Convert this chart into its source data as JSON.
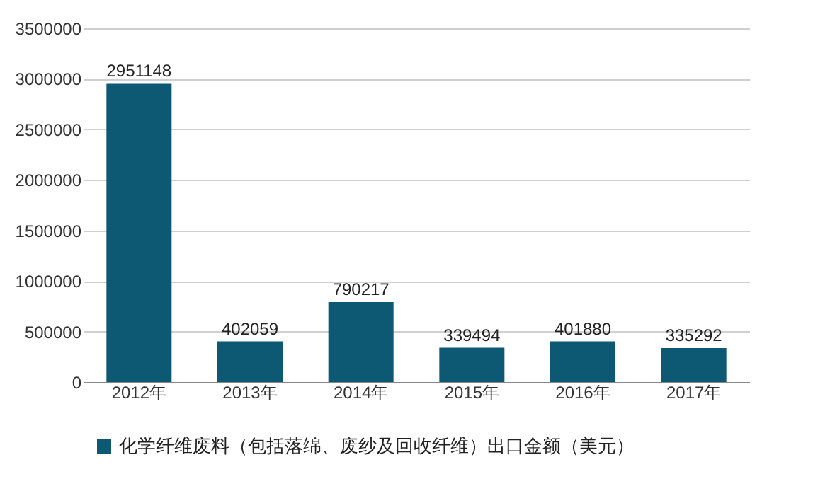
{
  "chart_data": {
    "type": "bar",
    "categories": [
      "2012年",
      "2013年",
      "2014年",
      "2015年",
      "2016年",
      "2017年"
    ],
    "series": [
      {
        "name": "化学纤维废料（包括落绵、废纱及回收纤维）出口金额（美元）",
        "color": "#0d5872",
        "values": [
          2951148,
          402059,
          790217,
          339494,
          401880,
          335292
        ]
      }
    ],
    "ylim": [
      0,
      3500000
    ],
    "yticks": [
      0,
      500000,
      1000000,
      1500000,
      2000000,
      2500000,
      3000000,
      3500000
    ],
    "grid": "y",
    "legend": "bottom",
    "data_labels": true
  }
}
